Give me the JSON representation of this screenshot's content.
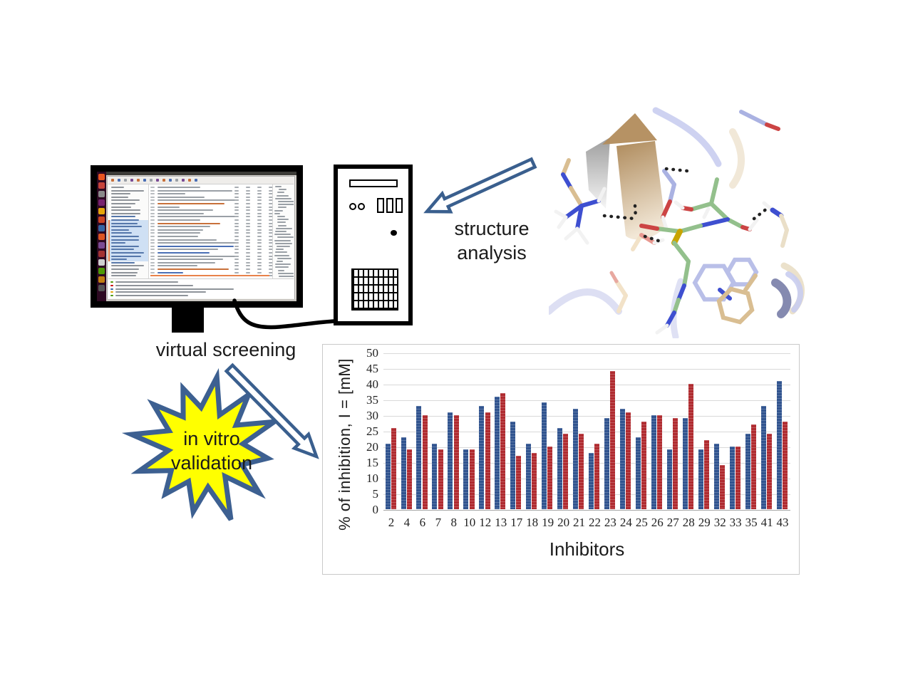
{
  "figure": {
    "labels": {
      "virtual_screening": "virtual screening",
      "structure_analysis_line1": "structure",
      "structure_analysis_line2": "analysis",
      "in_vitro_line1": "in vitro",
      "in_vitro_line2": "validation"
    },
    "colors": {
      "arrow_outline": "#3A5F8E",
      "arrow_fill": "#FFFFFF",
      "starburst_fill": "#FFFF00",
      "starburst_outline": "#3D6091",
      "monitor_frame": "#000000",
      "tower_outline": "#000000",
      "chart_panel_border": "#C9C9C9"
    }
  },
  "chart_data": {
    "type": "bar",
    "title": "",
    "xlabel": "Inhibitors",
    "ylabel": "% of inhibition, I = [mM]",
    "ylim": [
      0,
      50
    ],
    "ytick_step": 5,
    "grid": true,
    "legend_position": "none",
    "categories": [
      "2",
      "4",
      "6",
      "7",
      "8",
      "10",
      "12",
      "13",
      "17",
      "18",
      "19",
      "20",
      "21",
      "22",
      "23",
      "24",
      "25",
      "26",
      "27",
      "28",
      "29",
      "32",
      "33",
      "35",
      "41",
      "43"
    ],
    "series": [
      {
        "name": "blue",
        "color": "#31548F",
        "values": [
          21,
          23,
          33,
          21,
          31,
          19,
          33,
          36,
          28,
          21,
          34,
          26,
          32,
          18,
          29,
          32,
          23,
          30,
          19,
          29,
          19,
          21,
          20,
          24,
          33,
          41
        ]
      },
      {
        "name": "red",
        "color": "#B02B30",
        "values": [
          26,
          19,
          30,
          19,
          30,
          19,
          31,
          37,
          17,
          18,
          20,
          24,
          24,
          21,
          44,
          31,
          28,
          30,
          29,
          40,
          22,
          14,
          20,
          27,
          24,
          28
        ]
      }
    ]
  }
}
